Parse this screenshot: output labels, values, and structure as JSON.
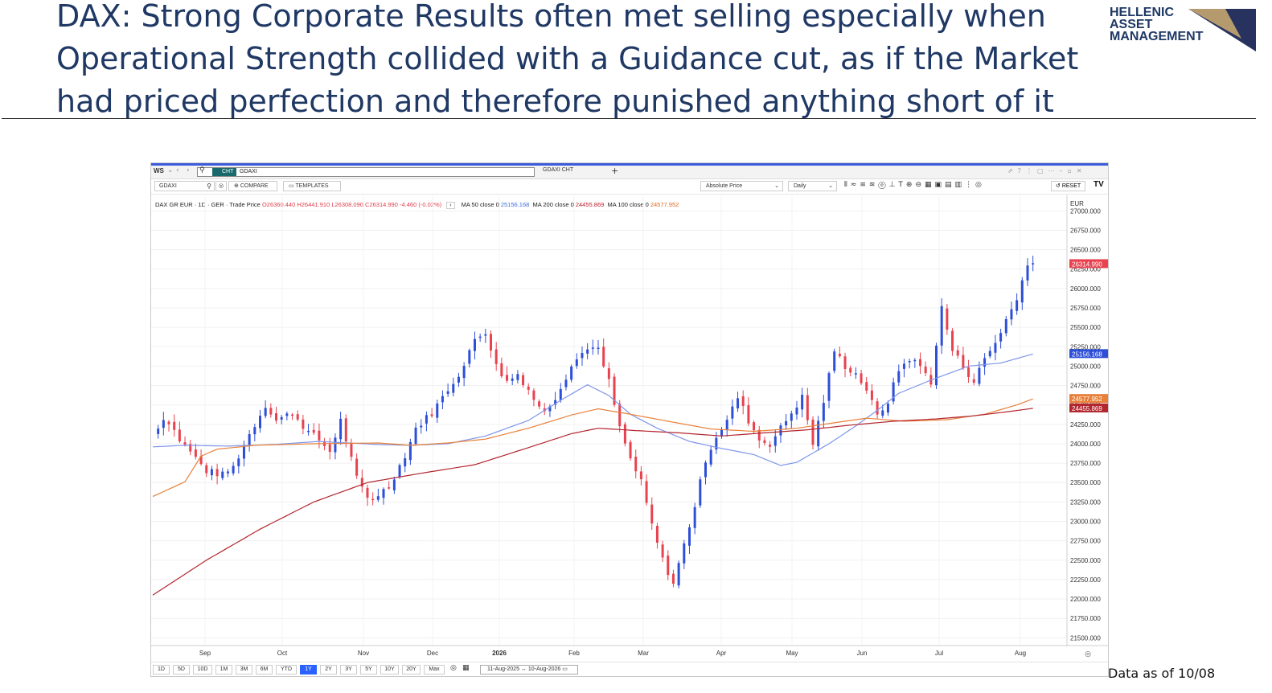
{
  "slide": {
    "title": "DAX: Strong Corporate Results often met selling especially when Operational Strength collided with a Guidance cut, as if the Market had priced perfection and therefore punished anything short of it",
    "logo_lines": [
      "HELLENIC",
      "ASSET",
      "MANAGEMENT"
    ],
    "footer_note": "Data as of 10/08"
  },
  "app": {
    "workspace": "WS",
    "cht_badge": "CHT",
    "ticker_search": "GDAXI",
    "tab_label": "GDAXI CHT",
    "security_input": "GDAXI",
    "compare_label": "COMPARE",
    "templates_label": "TEMPLATES",
    "price_mode": "Absolute Price",
    "interval": "Daily",
    "reset_label": "RESET",
    "currency": "EUR",
    "date_range": "11-Aug-2025 ↔ 10-Aug-2026",
    "range_buttons": [
      "1D",
      "5D",
      "10D",
      "1M",
      "3M",
      "6M",
      "YTD",
      "1Y",
      "2Y",
      "3Y",
      "5Y",
      "10Y",
      "20Y",
      "Max"
    ],
    "active_range": "1Y"
  },
  "legend": {
    "instrument": "DAX GR EUR · 1D · GER · Trade Price",
    "open": "O26360.440",
    "high": "H26441.910",
    "low": "L26308.090",
    "close": "C26314.990",
    "change": "-4.460 (-0.02%)",
    "ma50_label": "MA 50 close 0",
    "ma50_value": "25156.168",
    "ma200_label": "MA 200 close 0",
    "ma200_value": "24455.869",
    "ma100_label": "MA 100 close 0",
    "ma100_value": "24577.952"
  },
  "colors": {
    "up": "#2d4fd8",
    "down": "#e8424f",
    "ma50": "#7f96ea",
    "ma100": "#e8803a",
    "ma200": "#b3262e",
    "title": "#1f3864",
    "accent": "#3b5bdb"
  },
  "chart_data": {
    "type": "candlestick",
    "title": "",
    "xlabel": "",
    "ylabel": "",
    "ylim": [
      21400,
      27200
    ],
    "y_ticks": [
      27000,
      26750,
      26500,
      26250,
      26000,
      25750,
      25500,
      25250,
      25000,
      24750,
      24500,
      24250,
      24000,
      23750,
      23500,
      23250,
      23000,
      22750,
      22500,
      22250,
      22000,
      21750,
      21500
    ],
    "x_ticks": [
      "Sep",
      "Oct",
      "Nov",
      "Dec",
      "2026",
      "Feb",
      "Mar",
      "Apr",
      "May",
      "Jun",
      "Jul",
      "Aug"
    ],
    "last_price": "26314.990",
    "price_tags": [
      {
        "label": "26314.990",
        "value": 26314.99,
        "color": "#e8424f"
      },
      {
        "label": "25156.168",
        "value": 25156.168,
        "color": "#2d4fd8"
      },
      {
        "label": "24577.952",
        "value": 24577.952,
        "color": "#e8803a"
      },
      {
        "label": "24455.869",
        "value": 24455.869,
        "color": "#b3262e"
      }
    ],
    "anchors": [
      [
        0,
        24150
      ],
      [
        5,
        24350
      ],
      [
        10,
        24050
      ],
      [
        14,
        23900
      ],
      [
        20,
        23650
      ],
      [
        26,
        23600
      ],
      [
        30,
        23700
      ],
      [
        36,
        24120
      ],
      [
        42,
        24500
      ],
      [
        46,
        24300
      ],
      [
        52,
        24400
      ],
      [
        58,
        24150
      ],
      [
        62,
        24050
      ],
      [
        66,
        23900
      ],
      [
        70,
        24300
      ],
      [
        74,
        23800
      ],
      [
        76,
        23550
      ],
      [
        80,
        23300
      ],
      [
        82,
        23300
      ],
      [
        88,
        23450
      ],
      [
        94,
        23850
      ],
      [
        98,
        24200
      ],
      [
        104,
        24400
      ],
      [
        110,
        24700
      ],
      [
        116,
        25000
      ],
      [
        120,
        25350
      ],
      [
        124,
        25450
      ],
      [
        128,
        25000
      ],
      [
        132,
        24800
      ],
      [
        136,
        24900
      ],
      [
        140,
        24700
      ],
      [
        145,
        24400
      ],
      [
        150,
        24600
      ],
      [
        156,
        25000
      ],
      [
        162,
        25250
      ],
      [
        166,
        25200
      ],
      [
        170,
        24800
      ],
      [
        174,
        24200
      ],
      [
        178,
        23800
      ],
      [
        182,
        23500
      ],
      [
        186,
        22950
      ],
      [
        190,
        22500
      ],
      [
        194,
        22200
      ],
      [
        198,
        22700
      ],
      [
        202,
        23200
      ],
      [
        206,
        23800
      ],
      [
        210,
        24100
      ],
      [
        214,
        24300
      ],
      [
        218,
        24600
      ],
      [
        222,
        24300
      ],
      [
        226,
        24050
      ],
      [
        230,
        24000
      ],
      [
        234,
        24200
      ],
      [
        238,
        24400
      ],
      [
        242,
        24600
      ],
      [
        246,
        24000
      ],
      [
        250,
        24550
      ],
      [
        254,
        25200
      ],
      [
        258,
        25000
      ],
      [
        262,
        24900
      ],
      [
        266,
        24700
      ],
      [
        270,
        24350
      ],
      [
        274,
        24550
      ],
      [
        278,
        24950
      ],
      [
        282,
        25100
      ],
      [
        286,
        25000
      ],
      [
        290,
        24800
      ],
      [
        294,
        25750
      ],
      [
        298,
        25200
      ],
      [
        302,
        25000
      ],
      [
        306,
        24800
      ],
      [
        310,
        25100
      ],
      [
        314,
        25300
      ],
      [
        318,
        25600
      ],
      [
        322,
        25850
      ],
      [
        324,
        26150
      ],
      [
        326,
        26300
      ],
      [
        328,
        26315
      ]
    ],
    "ma": [
      {
        "name": "MA 50",
        "values": [
          [
            0,
            23960
          ],
          [
            12,
            23980
          ],
          [
            28,
            23970
          ],
          [
            45,
            23990
          ],
          [
            62,
            24030
          ],
          [
            84,
            23990
          ],
          [
            96,
            23980
          ],
          [
            110,
            24000
          ],
          [
            124,
            24100
          ],
          [
            140,
            24300
          ],
          [
            152,
            24560
          ],
          [
            162,
            24760
          ],
          [
            170,
            24620
          ],
          [
            178,
            24380
          ],
          [
            188,
            24200
          ],
          [
            200,
            24030
          ],
          [
            212,
            23940
          ],
          [
            224,
            23860
          ],
          [
            234,
            23720
          ],
          [
            240,
            23760
          ],
          [
            252,
            24000
          ],
          [
            262,
            24230
          ],
          [
            270,
            24430
          ],
          [
            278,
            24650
          ],
          [
            290,
            24820
          ],
          [
            304,
            25000
          ],
          [
            316,
            25040
          ],
          [
            328,
            25156
          ]
        ]
      },
      {
        "name": "MA 100",
        "values": [
          [
            0,
            23320
          ],
          [
            12,
            23510
          ],
          [
            18,
            23840
          ],
          [
            24,
            23930
          ],
          [
            38,
            23980
          ],
          [
            60,
            24000
          ],
          [
            84,
            24010
          ],
          [
            96,
            23980
          ],
          [
            110,
            24010
          ],
          [
            124,
            24060
          ],
          [
            140,
            24200
          ],
          [
            156,
            24370
          ],
          [
            166,
            24450
          ],
          [
            178,
            24380
          ],
          [
            192,
            24290
          ],
          [
            208,
            24190
          ],
          [
            224,
            24160
          ],
          [
            240,
            24200
          ],
          [
            256,
            24280
          ],
          [
            266,
            24330
          ],
          [
            280,
            24290
          ],
          [
            296,
            24310
          ],
          [
            310,
            24380
          ],
          [
            316,
            24440
          ],
          [
            322,
            24500
          ],
          [
            328,
            24578
          ]
        ]
      },
      {
        "name": "MA 200",
        "values": [
          [
            0,
            22050
          ],
          [
            20,
            22500
          ],
          [
            40,
            22900
          ],
          [
            60,
            23250
          ],
          [
            80,
            23500
          ],
          [
            100,
            23620
          ],
          [
            120,
            23730
          ],
          [
            140,
            23950
          ],
          [
            156,
            24130
          ],
          [
            166,
            24200
          ],
          [
            180,
            24170
          ],
          [
            196,
            24140
          ],
          [
            212,
            24100
          ],
          [
            228,
            24140
          ],
          [
            244,
            24180
          ],
          [
            260,
            24240
          ],
          [
            276,
            24290
          ],
          [
            292,
            24320
          ],
          [
            306,
            24360
          ],
          [
            318,
            24410
          ],
          [
            328,
            24456
          ]
        ]
      }
    ]
  }
}
